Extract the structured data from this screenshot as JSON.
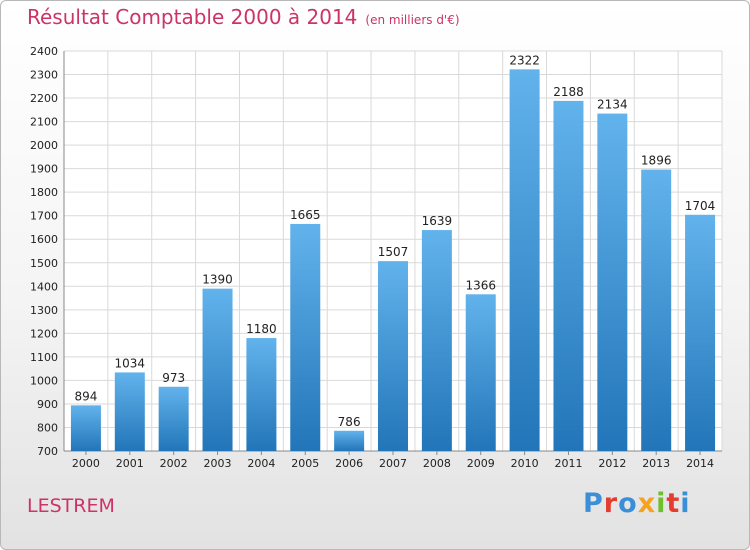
{
  "title": "Résultat Comptable 2000 à 2014",
  "unit_note": "(en milliers d'€)",
  "commune": "LESTREM",
  "logo": {
    "text": "Proxiti",
    "letter_colors": [
      "#3b8fd9",
      "#e43d2f",
      "#3b8fd9",
      "#f7a21b",
      "#6dbf2c",
      "#e43d2f",
      "#3b8fd9"
    ]
  },
  "colors": {
    "bar_light": "#62b3ec",
    "bar_dark": "#2275b8",
    "title": "#cc3366",
    "grid": "#d9d9d9"
  },
  "chart_data": {
    "type": "bar",
    "title": "Résultat Comptable 2000 à 2014",
    "categories": [
      "2000",
      "2001",
      "2002",
      "2003",
      "2004",
      "2005",
      "2006",
      "2007",
      "2008",
      "2009",
      "2010",
      "2011",
      "2012",
      "2013",
      "2014"
    ],
    "values": [
      894,
      1034,
      973,
      1390,
      1180,
      1665,
      786,
      1507,
      1639,
      1366,
      2322,
      2188,
      2134,
      1896,
      1704
    ],
    "ylim": [
      700,
      2400
    ],
    "yticks": [
      700,
      800,
      900,
      1000,
      1100,
      1200,
      1300,
      1400,
      1500,
      1600,
      1700,
      1800,
      1900,
      2000,
      2100,
      2200,
      2300,
      2400
    ],
    "grid": true,
    "data_labels": true,
    "xlabel": "",
    "ylabel": ""
  }
}
